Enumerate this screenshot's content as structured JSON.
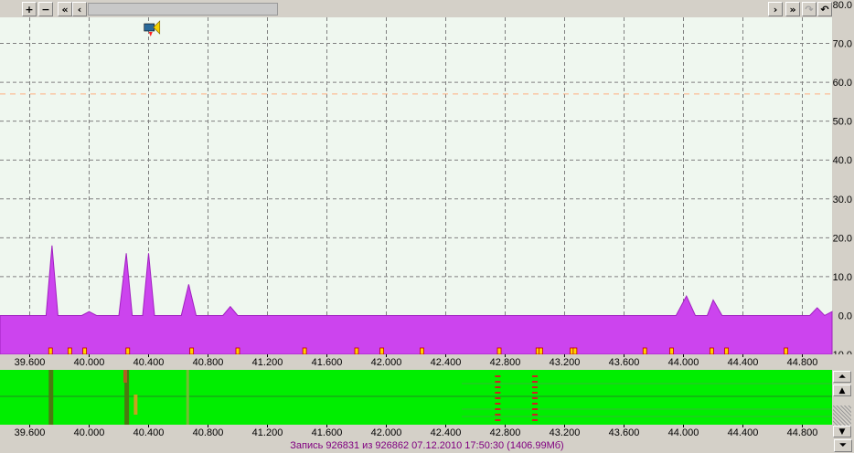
{
  "toolbar": {
    "zoom_in": "+",
    "zoom_out": "−",
    "first": "«",
    "prev": "‹",
    "next": "›",
    "last": "»"
  },
  "colors": {
    "plot_bg": "#eff7ef",
    "grid": "#808080",
    "fill": "#cc44ee",
    "threshold": "#ffb080",
    "marker": "#ffd200",
    "marker_edge": "#c00000",
    "track_bg": "#00ee00",
    "track_dark": "#4a7a10",
    "track_red": "#cc2222"
  },
  "status": "Запись 926831  из 926862   07.12.2010 17:50:30 (1406.99Мб)",
  "chart_data": {
    "type": "area",
    "xlim": [
      39.4,
      45.0
    ],
    "ylim": [
      -10,
      80
    ],
    "threshold": 57,
    "grid": true,
    "xticks": [
      "39.600",
      "40.000",
      "40.400",
      "40.800",
      "41.200",
      "41.600",
      "42.000",
      "42.400",
      "42.800",
      "43.200",
      "43.600",
      "44.000",
      "44.400",
      "44.800"
    ],
    "xtick_values": [
      39.6,
      40.0,
      40.4,
      40.8,
      41.2,
      41.6,
      42.0,
      42.4,
      42.8,
      43.2,
      43.6,
      44.0,
      44.4,
      44.8
    ],
    "yticks": [
      "80.0",
      "70.0",
      "60.0",
      "50.0",
      "40.0",
      "30.0",
      "20.0",
      "10.0",
      "0.0",
      "-10.0"
    ],
    "ytick_values": [
      80,
      70,
      60,
      50,
      40,
      30,
      20,
      10,
      0,
      -10
    ],
    "baseline": 0,
    "series": [
      {
        "x": [
          39.4,
          39.71,
          39.75,
          39.79,
          39.95,
          40.0,
          40.05,
          40.2,
          40.25,
          40.29,
          40.36,
          40.4,
          40.44,
          40.62,
          40.67,
          40.72,
          40.9,
          40.95,
          41.0,
          43.95,
          44.02,
          44.08,
          44.16,
          44.2,
          44.26,
          44.85,
          44.9,
          44.95,
          45.0
        ],
        "y": [
          0,
          0,
          18,
          0,
          0,
          1,
          0,
          0,
          16,
          0,
          0,
          16,
          0,
          0,
          8,
          0,
          0,
          2.3,
          0,
          0,
          5,
          0,
          0,
          4,
          0,
          0,
          2,
          0,
          1
        ]
      }
    ],
    "markers_x": [
      39.74,
      39.87,
      39.97,
      40.26,
      40.69,
      41.0,
      41.45,
      41.8,
      41.97,
      42.24,
      42.76,
      43.02,
      43.04,
      43.25,
      43.27,
      43.74,
      43.92,
      44.19,
      44.29,
      44.69
    ],
    "icon_x": 40.42
  },
  "track_marks": {
    "dark_x": [
      39.74,
      40.25
    ],
    "faint_x": [
      40.66
    ],
    "red_x": [
      42.75,
      43.0
    ],
    "small_red_x": [
      40.2,
      40.27
    ]
  }
}
